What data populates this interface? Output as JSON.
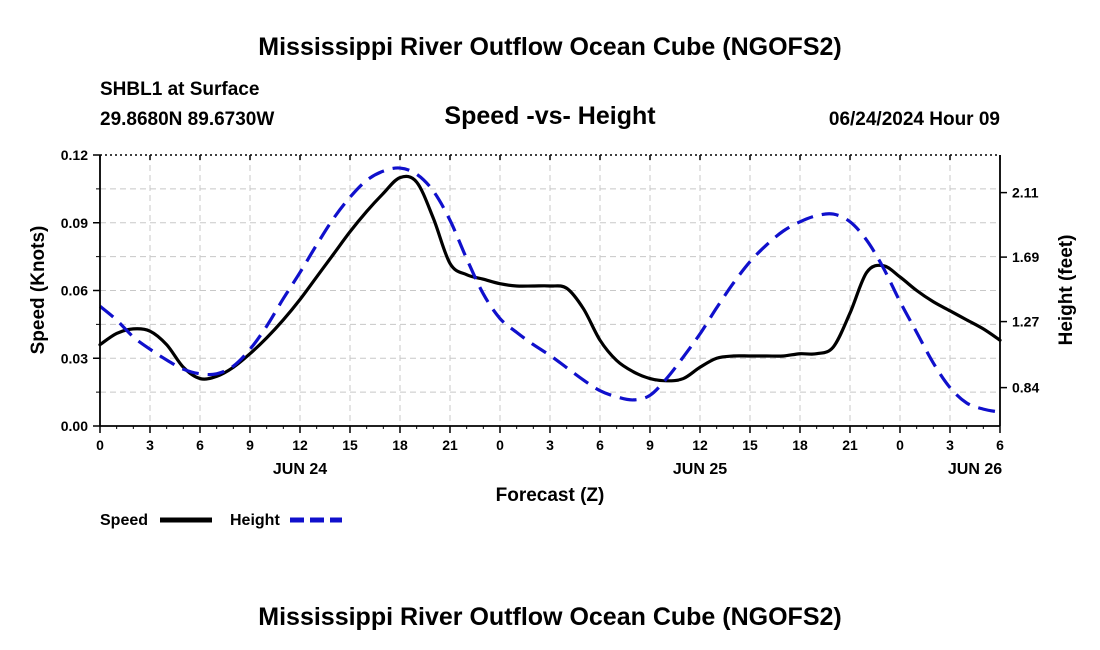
{
  "chart_data": {
    "type": "line",
    "title": "Mississippi River Outflow Ocean Cube (NGOFS2)",
    "subtitle": "Speed -vs- Height",
    "station": "SHBL1 at Surface",
    "location": "29.8680N  89.6730W",
    "datetime": "06/24/2024 Hour 09",
    "footer_title": "Mississippi River Outflow Ocean Cube (NGOFS2)",
    "xlabel": "Forecast (Z)",
    "ylabel": "Speed (Knots)",
    "y2label": "Height (feet)",
    "xlim": [
      0,
      54
    ],
    "ylim": [
      0,
      0.12
    ],
    "y2lim": [
      0.59,
      2.355
    ],
    "x_ticks": [
      0,
      3,
      6,
      9,
      12,
      15,
      18,
      21,
      24,
      27,
      30,
      33,
      36,
      39,
      42,
      45,
      48,
      51,
      54
    ],
    "x_tick_labels": [
      "0",
      "3",
      "6",
      "9",
      "12",
      "15",
      "18",
      "21",
      "0",
      "3",
      "6",
      "9",
      "12",
      "15",
      "18",
      "21",
      "0",
      "3",
      "6"
    ],
    "y_ticks": [
      0,
      0.03,
      0.06,
      0.09,
      0.12
    ],
    "y_tick_labels": [
      "0.00",
      "0.03",
      "0.06",
      "0.09",
      "0.12"
    ],
    "y2_ticks": [
      0.84,
      1.27,
      1.69,
      2.11
    ],
    "y2_tick_labels": [
      "0.84",
      "1.27",
      "1.69",
      "2.11"
    ],
    "day_labels": [
      {
        "x": 12,
        "label": "JUN 24"
      },
      {
        "x": 36,
        "label": "JUN 25"
      },
      {
        "x": 52.5,
        "label": "JUN 26"
      }
    ],
    "grid": true,
    "legend_position": "bottom-left",
    "series": [
      {
        "name": "Speed",
        "axis": "left",
        "color": "#000000",
        "dash": "solid",
        "x": [
          0,
          1,
          2,
          3,
          4,
          5,
          6,
          7,
          8,
          9,
          10,
          11,
          12,
          13,
          14,
          15,
          16,
          17,
          18,
          19,
          20,
          21,
          22,
          23,
          24,
          25,
          26,
          27,
          28,
          29,
          30,
          31,
          32,
          33,
          34,
          35,
          36,
          37,
          38,
          39,
          40,
          41,
          42,
          43,
          44,
          45,
          46,
          47,
          48,
          49,
          50,
          51,
          52,
          53,
          54
        ],
        "values": [
          0.036,
          0.041,
          0.043,
          0.042,
          0.036,
          0.026,
          0.021,
          0.022,
          0.026,
          0.032,
          0.039,
          0.047,
          0.056,
          0.066,
          0.076,
          0.086,
          0.095,
          0.103,
          0.11,
          0.108,
          0.092,
          0.072,
          0.067,
          0.065,
          0.063,
          0.062,
          0.062,
          0.062,
          0.061,
          0.052,
          0.038,
          0.029,
          0.024,
          0.021,
          0.02,
          0.021,
          0.026,
          0.03,
          0.031,
          0.031,
          0.031,
          0.031,
          0.032,
          0.032,
          0.035,
          0.05,
          0.068,
          0.071,
          0.066,
          0.06,
          0.055,
          0.051,
          0.047,
          0.043,
          0.038
        ]
      },
      {
        "name": "Height",
        "axis": "right",
        "color": "#1010cc",
        "dash": "dashed",
        "x": [
          0,
          1,
          2,
          3,
          4,
          5,
          6,
          7,
          8,
          9,
          10,
          11,
          12,
          13,
          14,
          15,
          16,
          17,
          18,
          19,
          20,
          21,
          22,
          23,
          24,
          25,
          26,
          27,
          28,
          29,
          30,
          31,
          32,
          33,
          34,
          35,
          36,
          37,
          38,
          39,
          40,
          41,
          42,
          43,
          44,
          45,
          46,
          47,
          48,
          49,
          50,
          51,
          52,
          53,
          54
        ],
        "values": [
          1.37,
          1.28,
          1.17,
          1.09,
          1.02,
          0.96,
          0.93,
          0.93,
          0.98,
          1.09,
          1.24,
          1.42,
          1.59,
          1.77,
          1.94,
          2.08,
          2.19,
          2.25,
          2.27,
          2.23,
          2.12,
          1.93,
          1.68,
          1.45,
          1.29,
          1.2,
          1.12,
          1.05,
          0.97,
          0.89,
          0.82,
          0.78,
          0.76,
          0.79,
          0.9,
          1.04,
          1.19,
          1.36,
          1.52,
          1.66,
          1.77,
          1.86,
          1.92,
          1.96,
          1.97,
          1.92,
          1.8,
          1.62,
          1.4,
          1.2,
          1.0,
          0.84,
          0.74,
          0.7,
          0.68
        ]
      }
    ]
  }
}
